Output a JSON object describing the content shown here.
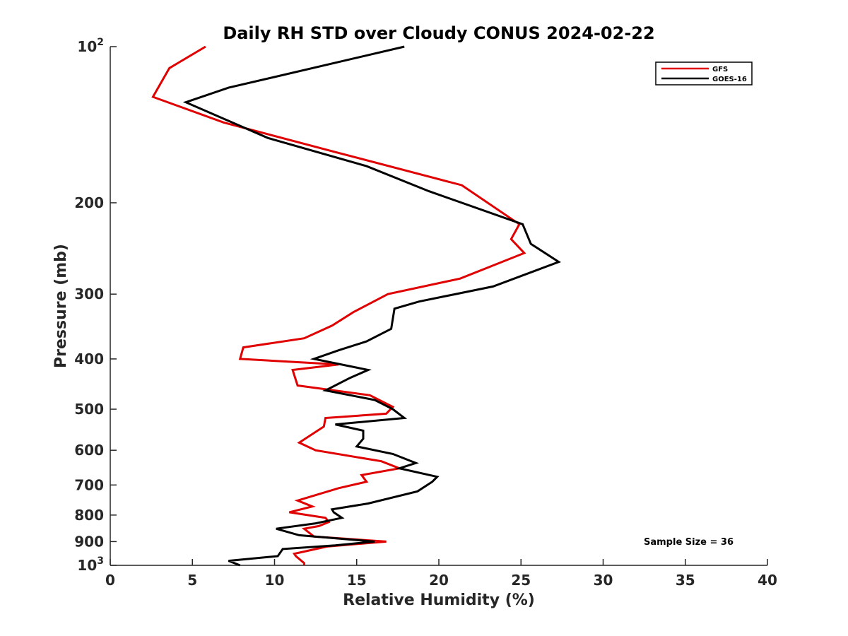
{
  "chart_data": {
    "type": "line",
    "title": "Daily RH STD over Cloudy CONUS 2024-02-22",
    "xlabel": "Relative Humidity (%)",
    "ylabel": "Pressure (mb)",
    "xlim": [
      0,
      40
    ],
    "ylim": [
      1000,
      100
    ],
    "y_scale": "log",
    "y_reversed": true,
    "grid": false,
    "legend_position": "top-right",
    "x_ticks": [
      0,
      5,
      10,
      15,
      20,
      25,
      30,
      35,
      40
    ],
    "x_tick_labels": [
      "0",
      "5",
      "10",
      "15",
      "20",
      "25",
      "30",
      "35",
      "40"
    ],
    "y_ticks": [
      100,
      200,
      300,
      400,
      500,
      600,
      700,
      800,
      900,
      1000
    ],
    "y_tick_labels": [
      {
        "base": "10",
        "exp": "2"
      },
      {
        "base": "200",
        "exp": ""
      },
      {
        "base": "300",
        "exp": ""
      },
      {
        "base": "400",
        "exp": ""
      },
      {
        "base": "500",
        "exp": ""
      },
      {
        "base": "600",
        "exp": ""
      },
      {
        "base": "700",
        "exp": ""
      },
      {
        "base": "800",
        "exp": ""
      },
      {
        "base": "900",
        "exp": ""
      },
      {
        "base": "10",
        "exp": "3"
      }
    ],
    "annotation": "Sample Size = 36",
    "series": [
      {
        "name": "GFS",
        "color": "#e00000",
        "x": [
          5.8,
          3.6,
          2.6,
          6.9,
          13.8,
          21.4,
          24.9,
          24.4,
          25.2,
          21.3,
          16.9,
          14.8,
          13.5,
          11.8,
          8.1,
          7.9,
          13.9,
          11.1,
          11.4,
          15.8,
          17.2,
          16.8,
          13.1,
          13.0,
          11.5,
          12.5,
          16.5,
          17.6,
          15.3,
          15.6,
          13.9,
          11.4,
          12.3,
          10.9,
          13.1,
          13.3,
          12.7,
          11.8,
          12.4,
          16.8,
          13.2,
          11.2,
          11.3,
          11.8,
          11.8
        ],
        "y": [
          100,
          110,
          125,
          140,
          160,
          185,
          220,
          235,
          250,
          280,
          300,
          325,
          345,
          365,
          380,
          400,
          410,
          420,
          450,
          470,
          495,
          510,
          520,
          540,
          580,
          600,
          630,
          650,
          670,
          690,
          710,
          750,
          770,
          790,
          810,
          825,
          840,
          850,
          880,
          900,
          920,
          950,
          960,
          990,
          1000
        ]
      },
      {
        "name": "GOES-16",
        "color": "#000000",
        "x": [
          17.9,
          7.2,
          4.6,
          9.6,
          15.6,
          19.4,
          25.1,
          25.6,
          27.3,
          23.3,
          18.8,
          17.3,
          17.1,
          15.6,
          13.9,
          12.4,
          15.7,
          14.6,
          13.1,
          16.1,
          17.2,
          17.9,
          13.7,
          15.4,
          15.4,
          15.0,
          17.2,
          18.6,
          17.6,
          19.9,
          19.6,
          18.7,
          15.7,
          13.5,
          13.6,
          14.1,
          12.5,
          10.1,
          11.5,
          16.1,
          13.7,
          10.5,
          10.2,
          7.2,
          7.9
        ],
        "y": [
          100,
          120,
          128,
          150,
          170,
          190,
          220,
          240,
          260,
          290,
          310,
          320,
          350,
          370,
          385,
          400,
          420,
          435,
          460,
          480,
          500,
          520,
          535,
          550,
          570,
          590,
          610,
          635,
          650,
          675,
          690,
          720,
          760,
          780,
          790,
          810,
          830,
          850,
          875,
          900,
          915,
          930,
          960,
          980,
          1000
        ]
      }
    ]
  }
}
